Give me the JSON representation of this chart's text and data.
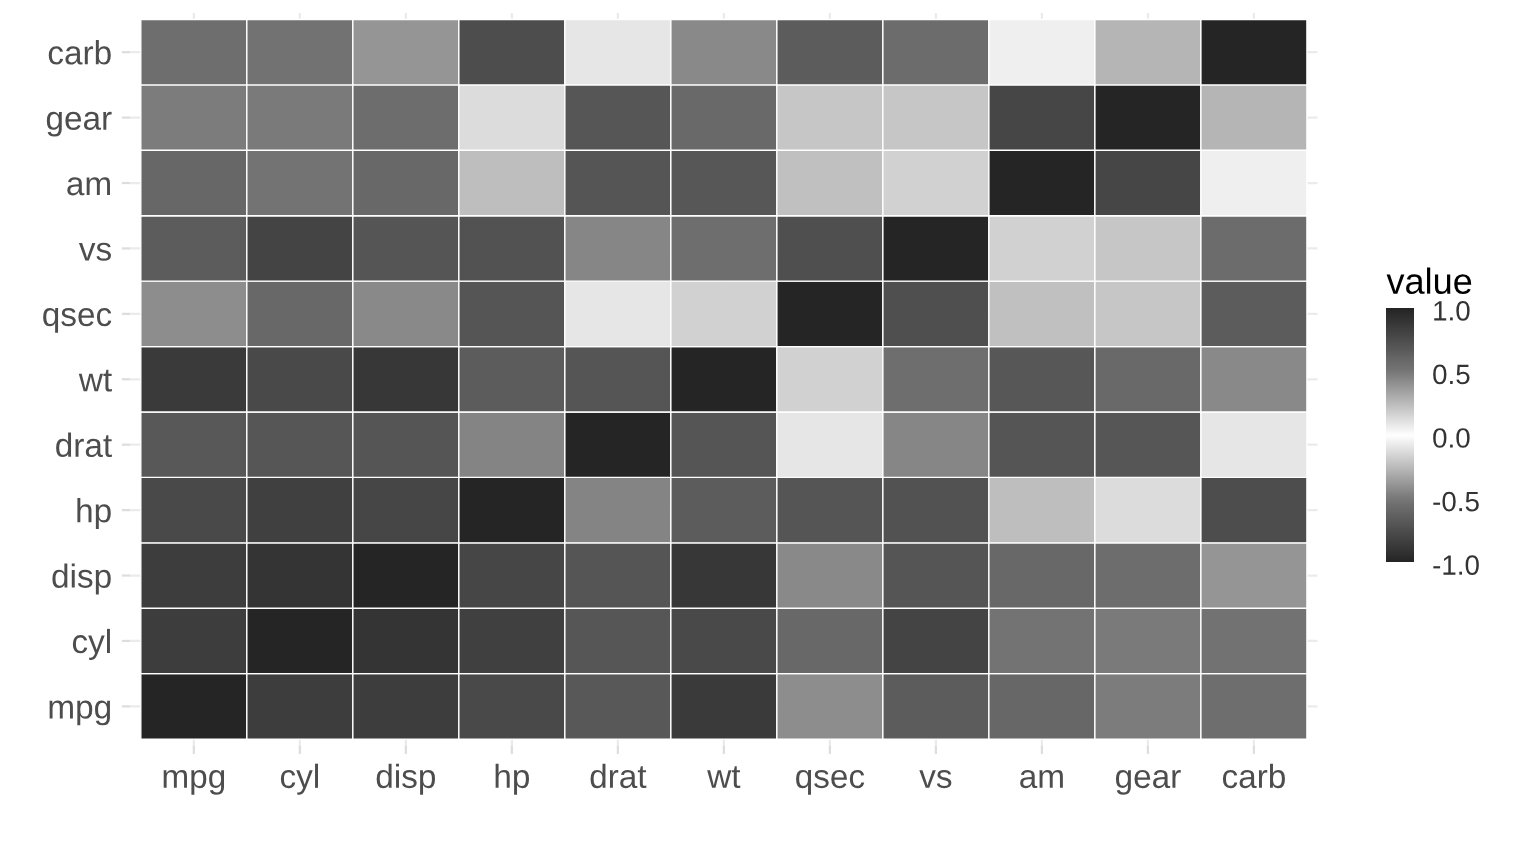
{
  "chart_data": {
    "type": "heatmap",
    "legend_title": "value",
    "categories": [
      "mpg",
      "cyl",
      "disp",
      "hp",
      "drat",
      "wt",
      "qsec",
      "vs",
      "am",
      "gear",
      "carb"
    ],
    "y_categories": [
      "carb",
      "gear",
      "am",
      "vs",
      "qsec",
      "wt",
      "drat",
      "hp",
      "disp",
      "cyl",
      "mpg"
    ],
    "cells": [
      [
        -0.55,
        0.53,
        0.39,
        0.75,
        -0.09,
        0.43,
        -0.66,
        -0.57,
        0.06,
        0.27,
        1
      ],
      [
        0.48,
        -0.49,
        -0.56,
        -0.13,
        0.7,
        -0.58,
        -0.21,
        0.21,
        0.79,
        1,
        0.27
      ],
      [
        0.6,
        -0.52,
        -0.59,
        -0.24,
        0.71,
        -0.69,
        -0.23,
        0.17,
        1,
        0.79,
        0.06
      ],
      [
        0.66,
        -0.81,
        -0.71,
        -0.72,
        0.44,
        -0.55,
        0.74,
        1,
        0.17,
        0.21,
        -0.57
      ],
      [
        0.42,
        -0.59,
        -0.43,
        -0.71,
        0.09,
        -0.17,
        1,
        0.74,
        -0.23,
        -0.21,
        -0.66
      ],
      [
        -0.87,
        0.78,
        0.89,
        0.66,
        -0.71,
        1,
        -0.17,
        -0.55,
        -0.69,
        -0.58,
        0.43
      ],
      [
        0.68,
        -0.7,
        -0.71,
        -0.45,
        1,
        -0.71,
        0.09,
        0.44,
        0.71,
        0.7,
        -0.09
      ],
      [
        -0.78,
        0.83,
        0.79,
        1,
        -0.45,
        0.66,
        -0.71,
        -0.72,
        -0.24,
        -0.13,
        0.75
      ],
      [
        -0.85,
        0.9,
        1,
        0.79,
        -0.71,
        0.89,
        -0.43,
        -0.71,
        -0.59,
        -0.56,
        0.39
      ],
      [
        -0.85,
        1,
        0.9,
        0.83,
        -0.7,
        0.78,
        -0.59,
        -0.81,
        -0.52,
        -0.49,
        0.53
      ],
      [
        1,
        -0.85,
        -0.85,
        -0.78,
        0.68,
        -0.87,
        0.42,
        0.66,
        0.6,
        0.48,
        -0.55
      ]
    ],
    "clim": [
      -1,
      1
    ],
    "cticks": [
      {
        "value": 1,
        "label": "1.0"
      },
      {
        "value": 0.5,
        "label": "0.5"
      },
      {
        "value": 0,
        "label": "0.0"
      },
      {
        "value": -0.5,
        "label": "-0.5"
      },
      {
        "value": -1,
        "label": "-1.0"
      }
    ],
    "grid": true
  }
}
